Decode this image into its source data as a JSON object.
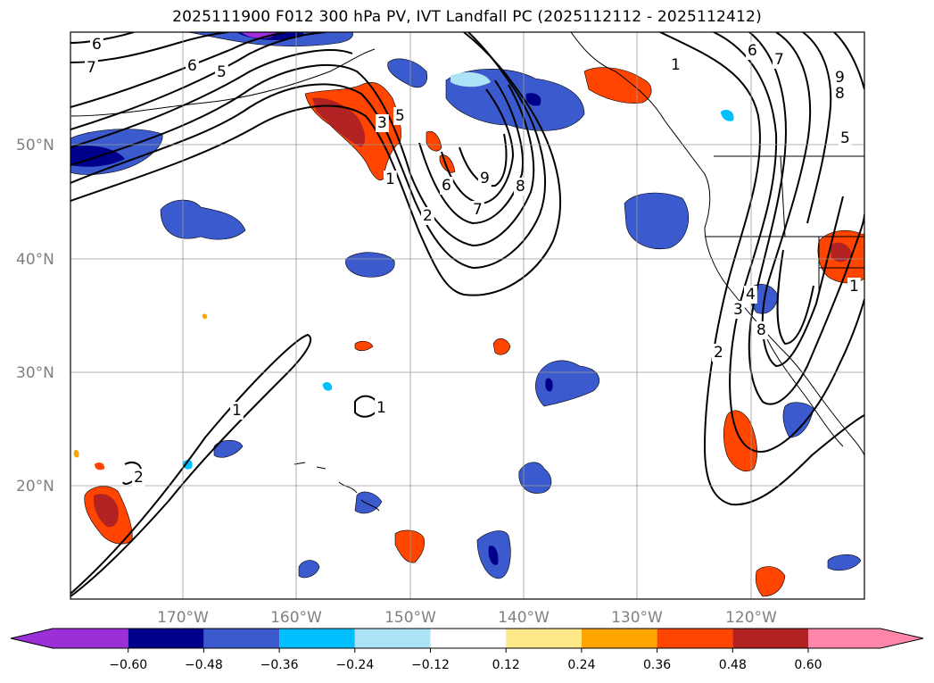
{
  "title": "2025111900 F012 300 hPa PV, IVT Landfall PC (2025112112 - 2025112412)",
  "map": {
    "lat_labels": [
      "50°N",
      "40°N",
      "30°N",
      "20°N"
    ],
    "lon_labels": [
      "170°W",
      "160°W",
      "150°W",
      "140°W",
      "130°W",
      "120°W"
    ]
  },
  "contour_labels": [
    "6",
    "7",
    "6",
    "5",
    "3",
    "5",
    "1",
    "2",
    "6",
    "9",
    "8",
    "7",
    "1",
    "6",
    "7",
    "9",
    "8",
    "5",
    "3",
    "4",
    "8",
    "2",
    "1",
    "1",
    "2",
    "1"
  ],
  "colorbar": {
    "ticks": [
      "−0.60",
      "−0.48",
      "−0.36",
      "−0.24",
      "−0.12",
      "0.12",
      "0.24",
      "0.36",
      "0.48",
      "0.60"
    ],
    "colors": {
      "lt_neg060": "#9b30d9",
      "neg060_neg048": "#00008b",
      "neg048_neg036": "#3a5acd",
      "neg036_neg024": "#00bfff",
      "neg024_neg012": "#ade3f7",
      "neg012_012": "#ffffff",
      "p012_024": "#fde98a",
      "p024_036": "#ffa500",
      "p036_048": "#ff4500",
      "p048_060": "#b22222",
      "gt060": "#ff86a8"
    }
  }
}
